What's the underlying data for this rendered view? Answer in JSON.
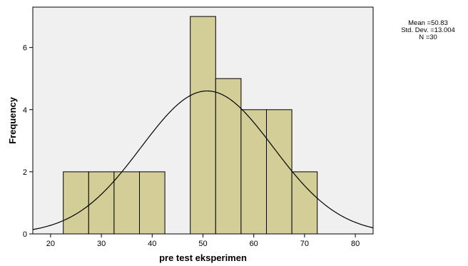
{
  "chart_data": {
    "type": "bar",
    "subtype": "histogram",
    "bins": [
      {
        "from": 22.5,
        "to": 27.5,
        "value": 2
      },
      {
        "from": 27.5,
        "to": 32.5,
        "value": 2
      },
      {
        "from": 32.5,
        "to": 37.5,
        "value": 2
      },
      {
        "from": 37.5,
        "to": 42.5,
        "value": 2
      },
      {
        "from": 47.5,
        "to": 52.5,
        "value": 7
      },
      {
        "from": 52.5,
        "to": 57.5,
        "value": 5
      },
      {
        "from": 57.5,
        "to": 62.5,
        "value": 4
      },
      {
        "from": 62.5,
        "to": 67.5,
        "value": 4
      },
      {
        "from": 67.5,
        "to": 72.5,
        "value": 2
      }
    ],
    "xlabel": "pre test eksperimen",
    "ylabel": "Frequency",
    "xlim": [
      16.5,
      83.5
    ],
    "ylim": [
      0,
      7.3
    ],
    "xticks": [
      "20",
      "30",
      "40",
      "50",
      "60",
      "70",
      "80"
    ],
    "yticks": [
      "0",
      "2",
      "4",
      "6"
    ],
    "grid": false,
    "normal_curve": {
      "mean": 50.83,
      "sd": 13.004,
      "n": 30,
      "bin_width": 5
    },
    "stats": {
      "mean_line": "Mean =50.83",
      "sd_line": "Std. Dev. =13.004",
      "n_line": "N =30"
    },
    "colors": {
      "plot_background": "#f0f0f0",
      "bar_fill": "#d3ce97",
      "bar_stroke": "#000000",
      "curve": "#000000"
    }
  }
}
